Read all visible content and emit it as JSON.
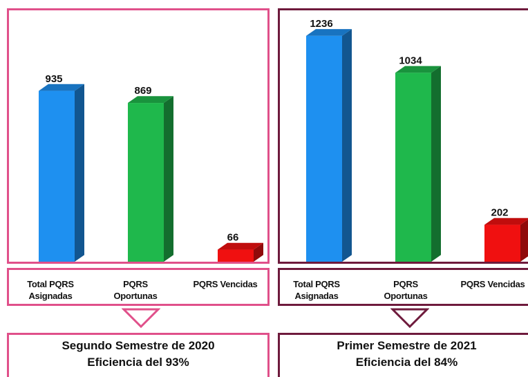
{
  "panels": [
    {
      "border_color": "#e0508a",
      "categories": [
        "Total PQRS\nAsignadas",
        "PQRS\nOportunas",
        "PQRS Vencidas"
      ],
      "caption_line1": "Segundo Semestre de 2020",
      "caption_line2": "Eficiencia del 93%"
    },
    {
      "border_color": "#6e1a3c",
      "categories": [
        "Total PQRS\nAsignadas",
        "PQRS\nOportunas",
        "PQRS Vencidas"
      ],
      "caption_line1": "Primer Semestre de 2021",
      "caption_line2": "Eficiencia del 84%"
    }
  ],
  "chart_data": [
    {
      "type": "bar",
      "categories": [
        "Total PQRS Asignadas",
        "PQRS Oportunas",
        "PQRS Vencidas"
      ],
      "values": [
        935,
        869,
        66
      ],
      "data_labels": [
        "935",
        "869",
        "66"
      ],
      "colors": [
        "#1e90f0",
        "#1fb84c",
        "#f01010"
      ],
      "ylim": [
        0,
        1300
      ]
    },
    {
      "type": "bar",
      "categories": [
        "Total PQRS Asignadas",
        "PQRS Oportunas",
        "PQRS Vencidas"
      ],
      "values": [
        1236,
        1034,
        202
      ],
      "data_labels": [
        "1236",
        "1034",
        "202"
      ],
      "colors": [
        "#1e90f0",
        "#1fb84c",
        "#f01010"
      ],
      "ylim": [
        0,
        1300
      ]
    }
  ]
}
